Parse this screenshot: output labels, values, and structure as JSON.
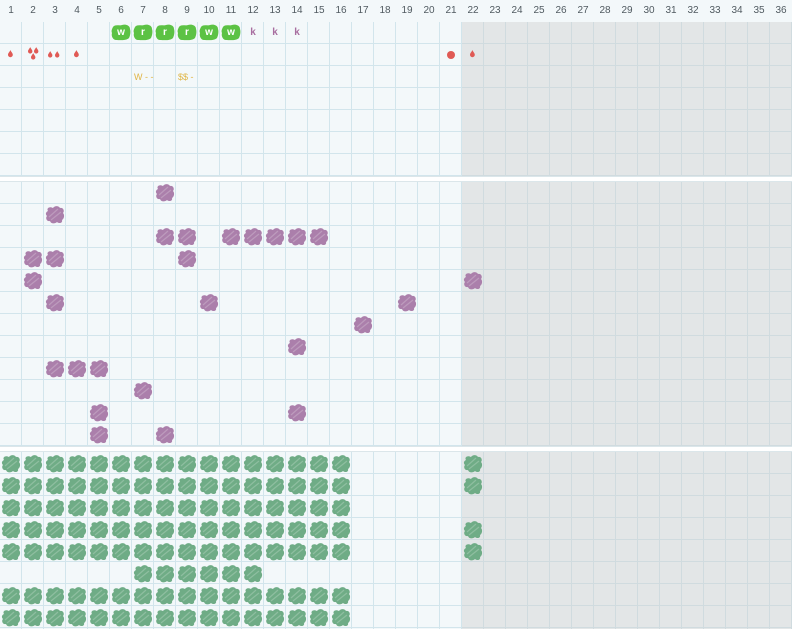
{
  "columns": [
    "1",
    "2",
    "3",
    "4",
    "5",
    "6",
    "7",
    "8",
    "9",
    "10",
    "11",
    "12",
    "13",
    "14",
    "15",
    "16",
    "17",
    "18",
    "19",
    "20",
    "21",
    "22",
    "23",
    "24",
    "25",
    "26",
    "27",
    "28",
    "29",
    "30",
    "31",
    "32",
    "33",
    "34",
    "35",
    "36"
  ],
  "active_columns": 21,
  "colors": {
    "grid_line": "#d2e5ec",
    "locked_shade": "#dcdcdc",
    "green_tag": "#5cc244",
    "purple_letter": "#a86ea0",
    "drop": "#e05a55",
    "note": "#e0b545",
    "purple_block": "#ab7fab",
    "green_block": "#6fac86"
  },
  "row1": {
    "tags": [
      {
        "col": 6,
        "text": "w"
      },
      {
        "col": 7,
        "text": "r"
      },
      {
        "col": 8,
        "text": "r"
      },
      {
        "col": 9,
        "text": "r"
      },
      {
        "col": 10,
        "text": "w"
      },
      {
        "col": 11,
        "text": "w"
      }
    ],
    "letters": [
      {
        "col": 12,
        "text": "k"
      },
      {
        "col": 13,
        "text": "k"
      },
      {
        "col": 14,
        "text": "k"
      }
    ],
    "drops": [
      {
        "col": 1,
        "kind": "single"
      },
      {
        "col": 2,
        "kind": "cluster"
      },
      {
        "col": 3,
        "kind": "double"
      },
      {
        "col": 4,
        "kind": "single"
      },
      {
        "col": 21,
        "kind": "dot"
      },
      {
        "col": 22,
        "kind": "single"
      }
    ],
    "notes": [
      {
        "col": 7,
        "text": "W - -"
      },
      {
        "col": 9,
        "text": "$$ -"
      }
    ]
  },
  "row2": {
    "cells": [
      [
        0,
        8
      ],
      [
        1,
        3
      ],
      [
        2,
        8
      ],
      [
        2,
        9
      ],
      [
        2,
        11
      ],
      [
        2,
        12
      ],
      [
        2,
        13
      ],
      [
        2,
        14
      ],
      [
        2,
        15
      ],
      [
        3,
        2
      ],
      [
        3,
        3
      ],
      [
        3,
        9
      ],
      [
        4,
        2
      ],
      [
        4,
        22
      ],
      [
        5,
        3
      ],
      [
        5,
        10
      ],
      [
        5,
        19
      ],
      [
        6,
        17
      ],
      [
        7,
        14
      ],
      [
        8,
        3
      ],
      [
        8,
        4
      ],
      [
        8,
        5
      ],
      [
        9,
        7
      ],
      [
        10,
        5
      ],
      [
        10,
        14
      ],
      [
        11,
        5
      ],
      [
        11,
        8
      ]
    ]
  },
  "row3": {
    "rows": [
      {
        "from": 1,
        "to": 16,
        "extra": [
          22
        ]
      },
      {
        "from": 1,
        "to": 16,
        "extra": [
          22
        ]
      },
      {
        "from": 1,
        "to": 16,
        "extra": []
      },
      {
        "from": 1,
        "to": 16,
        "extra": [
          22
        ]
      },
      {
        "from": 1,
        "to": 16,
        "extra": [
          22
        ]
      },
      {
        "from": 7,
        "to": 12,
        "extra": []
      },
      {
        "from": 1,
        "to": 16,
        "extra": []
      },
      {
        "from": 1,
        "to": 16,
        "extra": []
      }
    ]
  }
}
